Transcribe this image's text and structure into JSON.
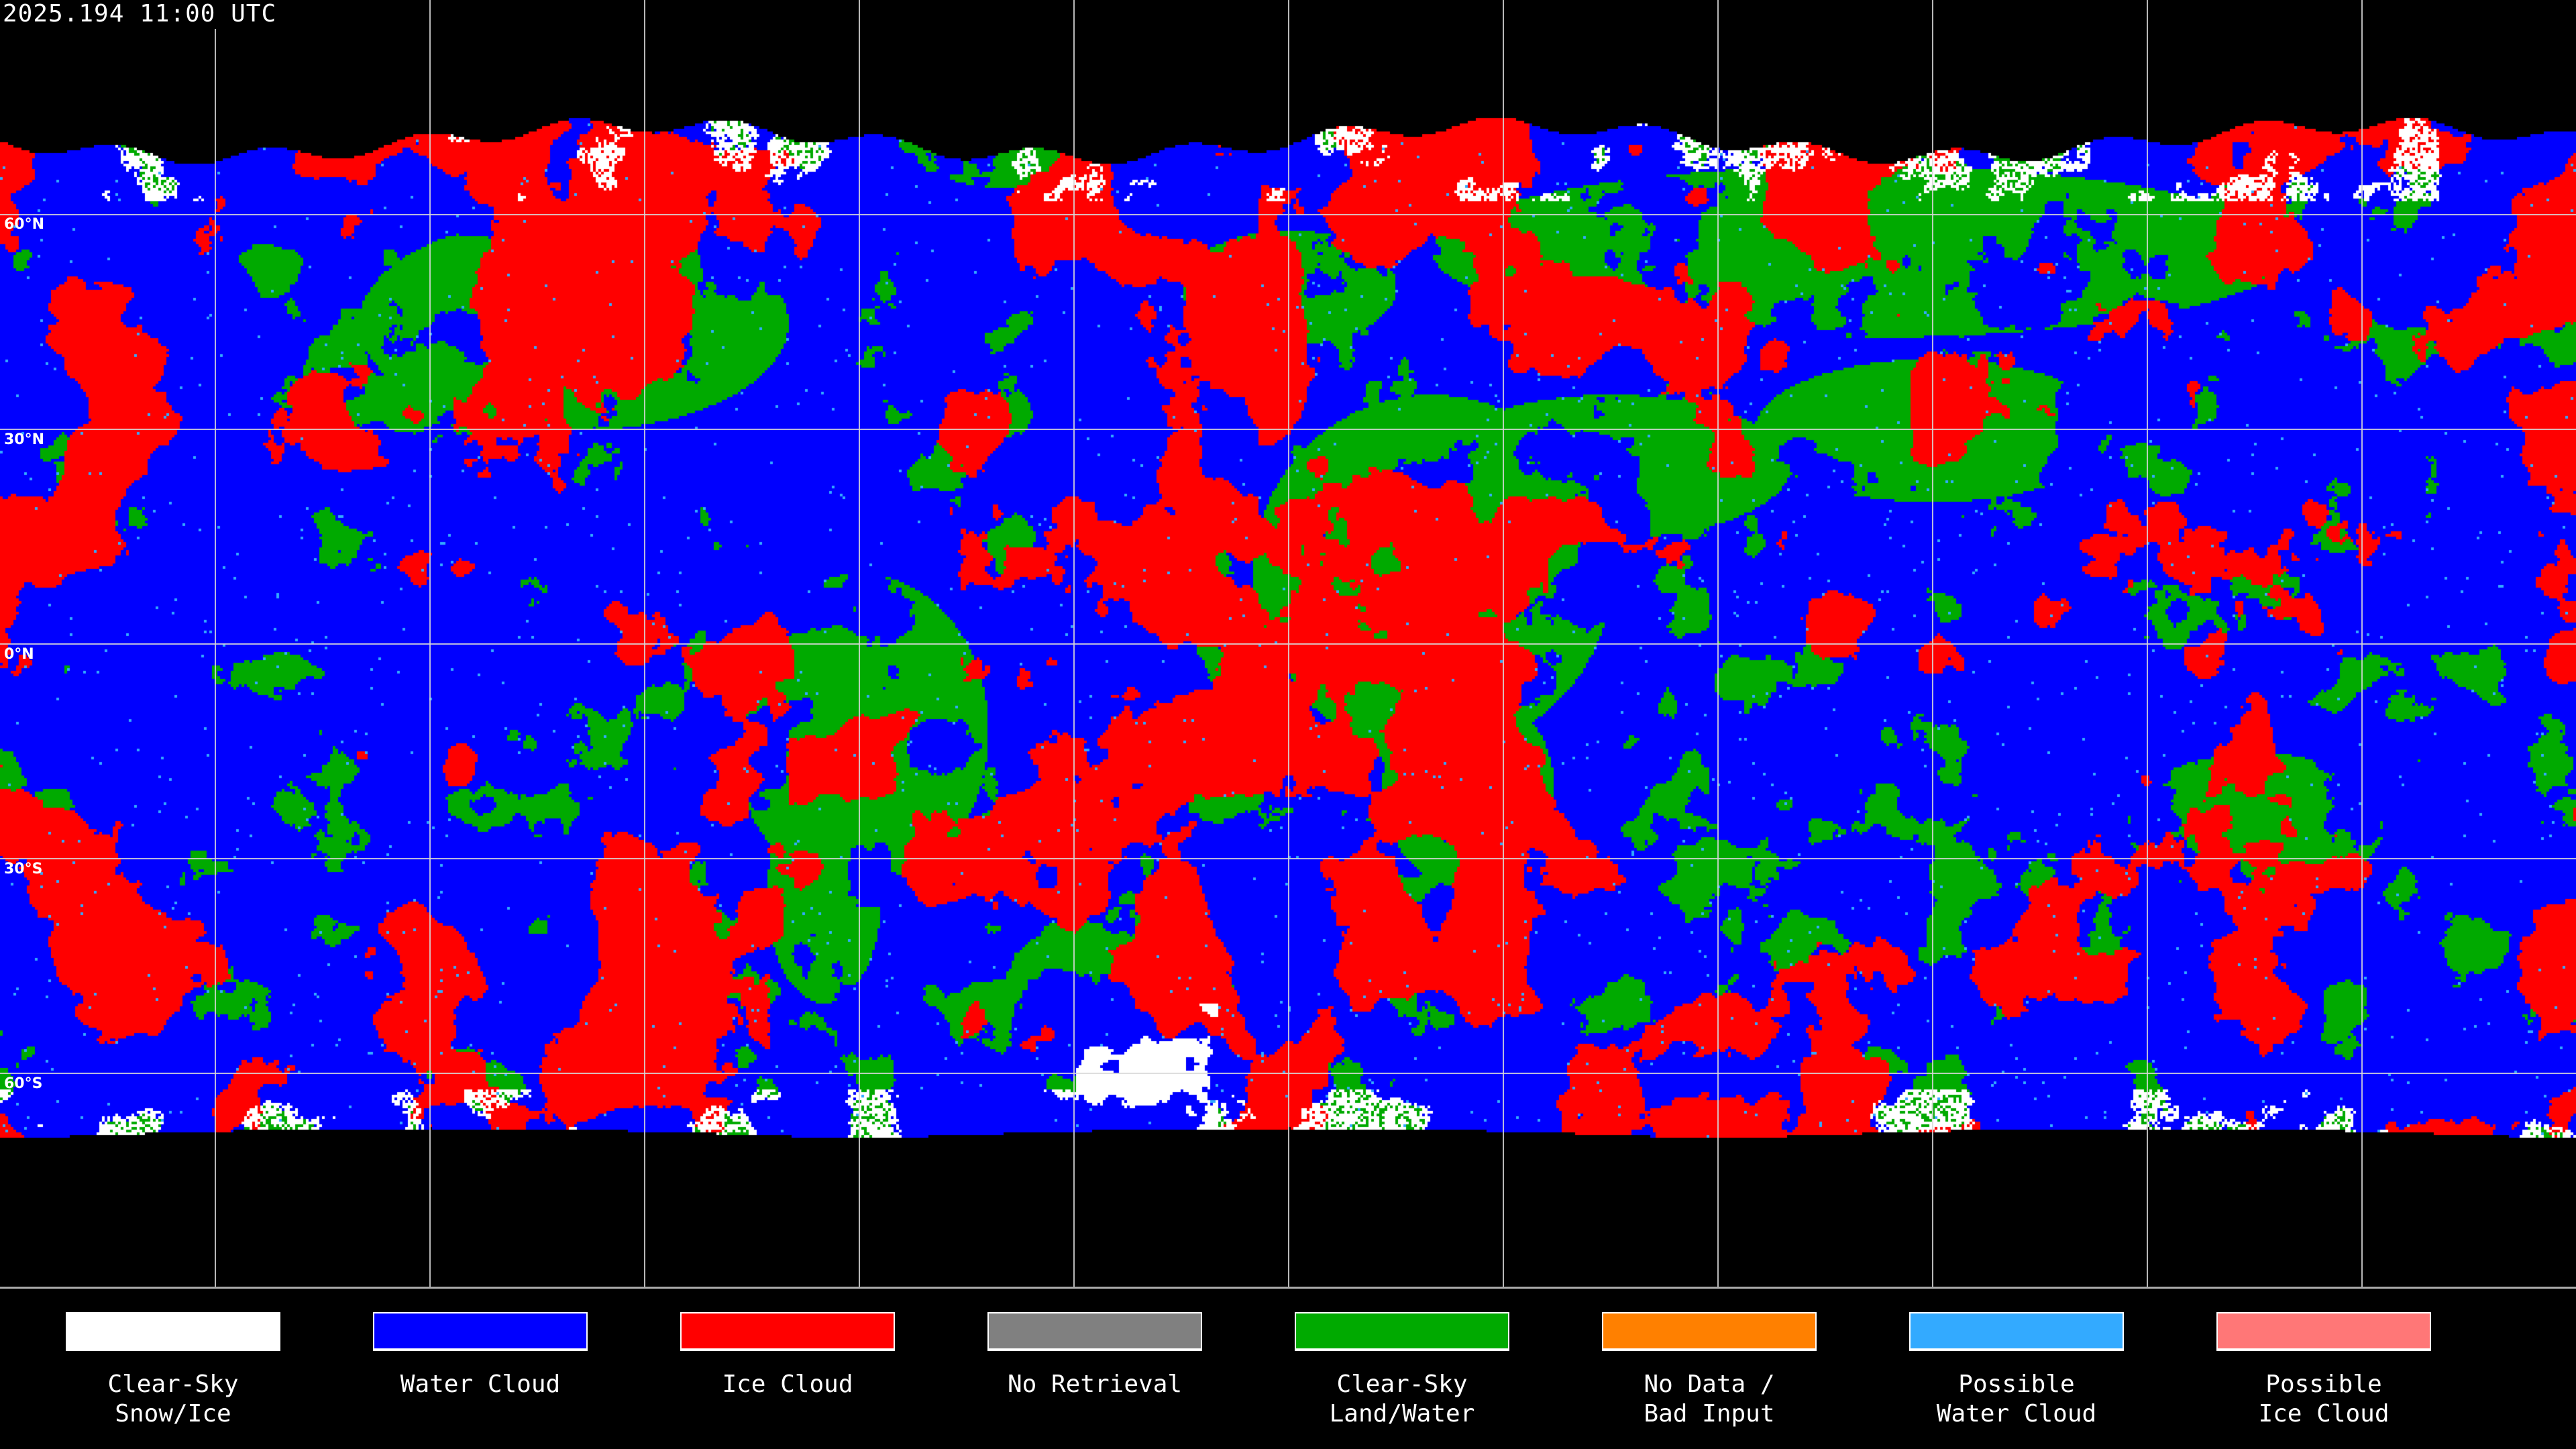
{
  "timestamp": "2025.194 11:00 UTC",
  "map": {
    "projection": "equirectangular",
    "lat_labels": [
      "60°N",
      "30°N",
      "0°N",
      "30°S",
      "60°S"
    ],
    "graticule_spacing_deg": 30
  },
  "legend": [
    {
      "label": "Clear-Sky\nSnow/Ice",
      "color": "#ffffff"
    },
    {
      "label": "Water Cloud",
      "color": "#0000ff"
    },
    {
      "label": "Ice Cloud",
      "color": "#ff0000"
    },
    {
      "label": "No Retrieval",
      "color": "#808080"
    },
    {
      "label": "Clear-Sky\nLand/Water",
      "color": "#00aa00"
    },
    {
      "label": "No Data /\nBad Input",
      "color": "#ff8000"
    },
    {
      "label": "Possible\nWater Cloud",
      "color": "#33aaff"
    },
    {
      "label": "Possible\nIce Cloud",
      "color": "#ff7777"
    }
  ]
}
